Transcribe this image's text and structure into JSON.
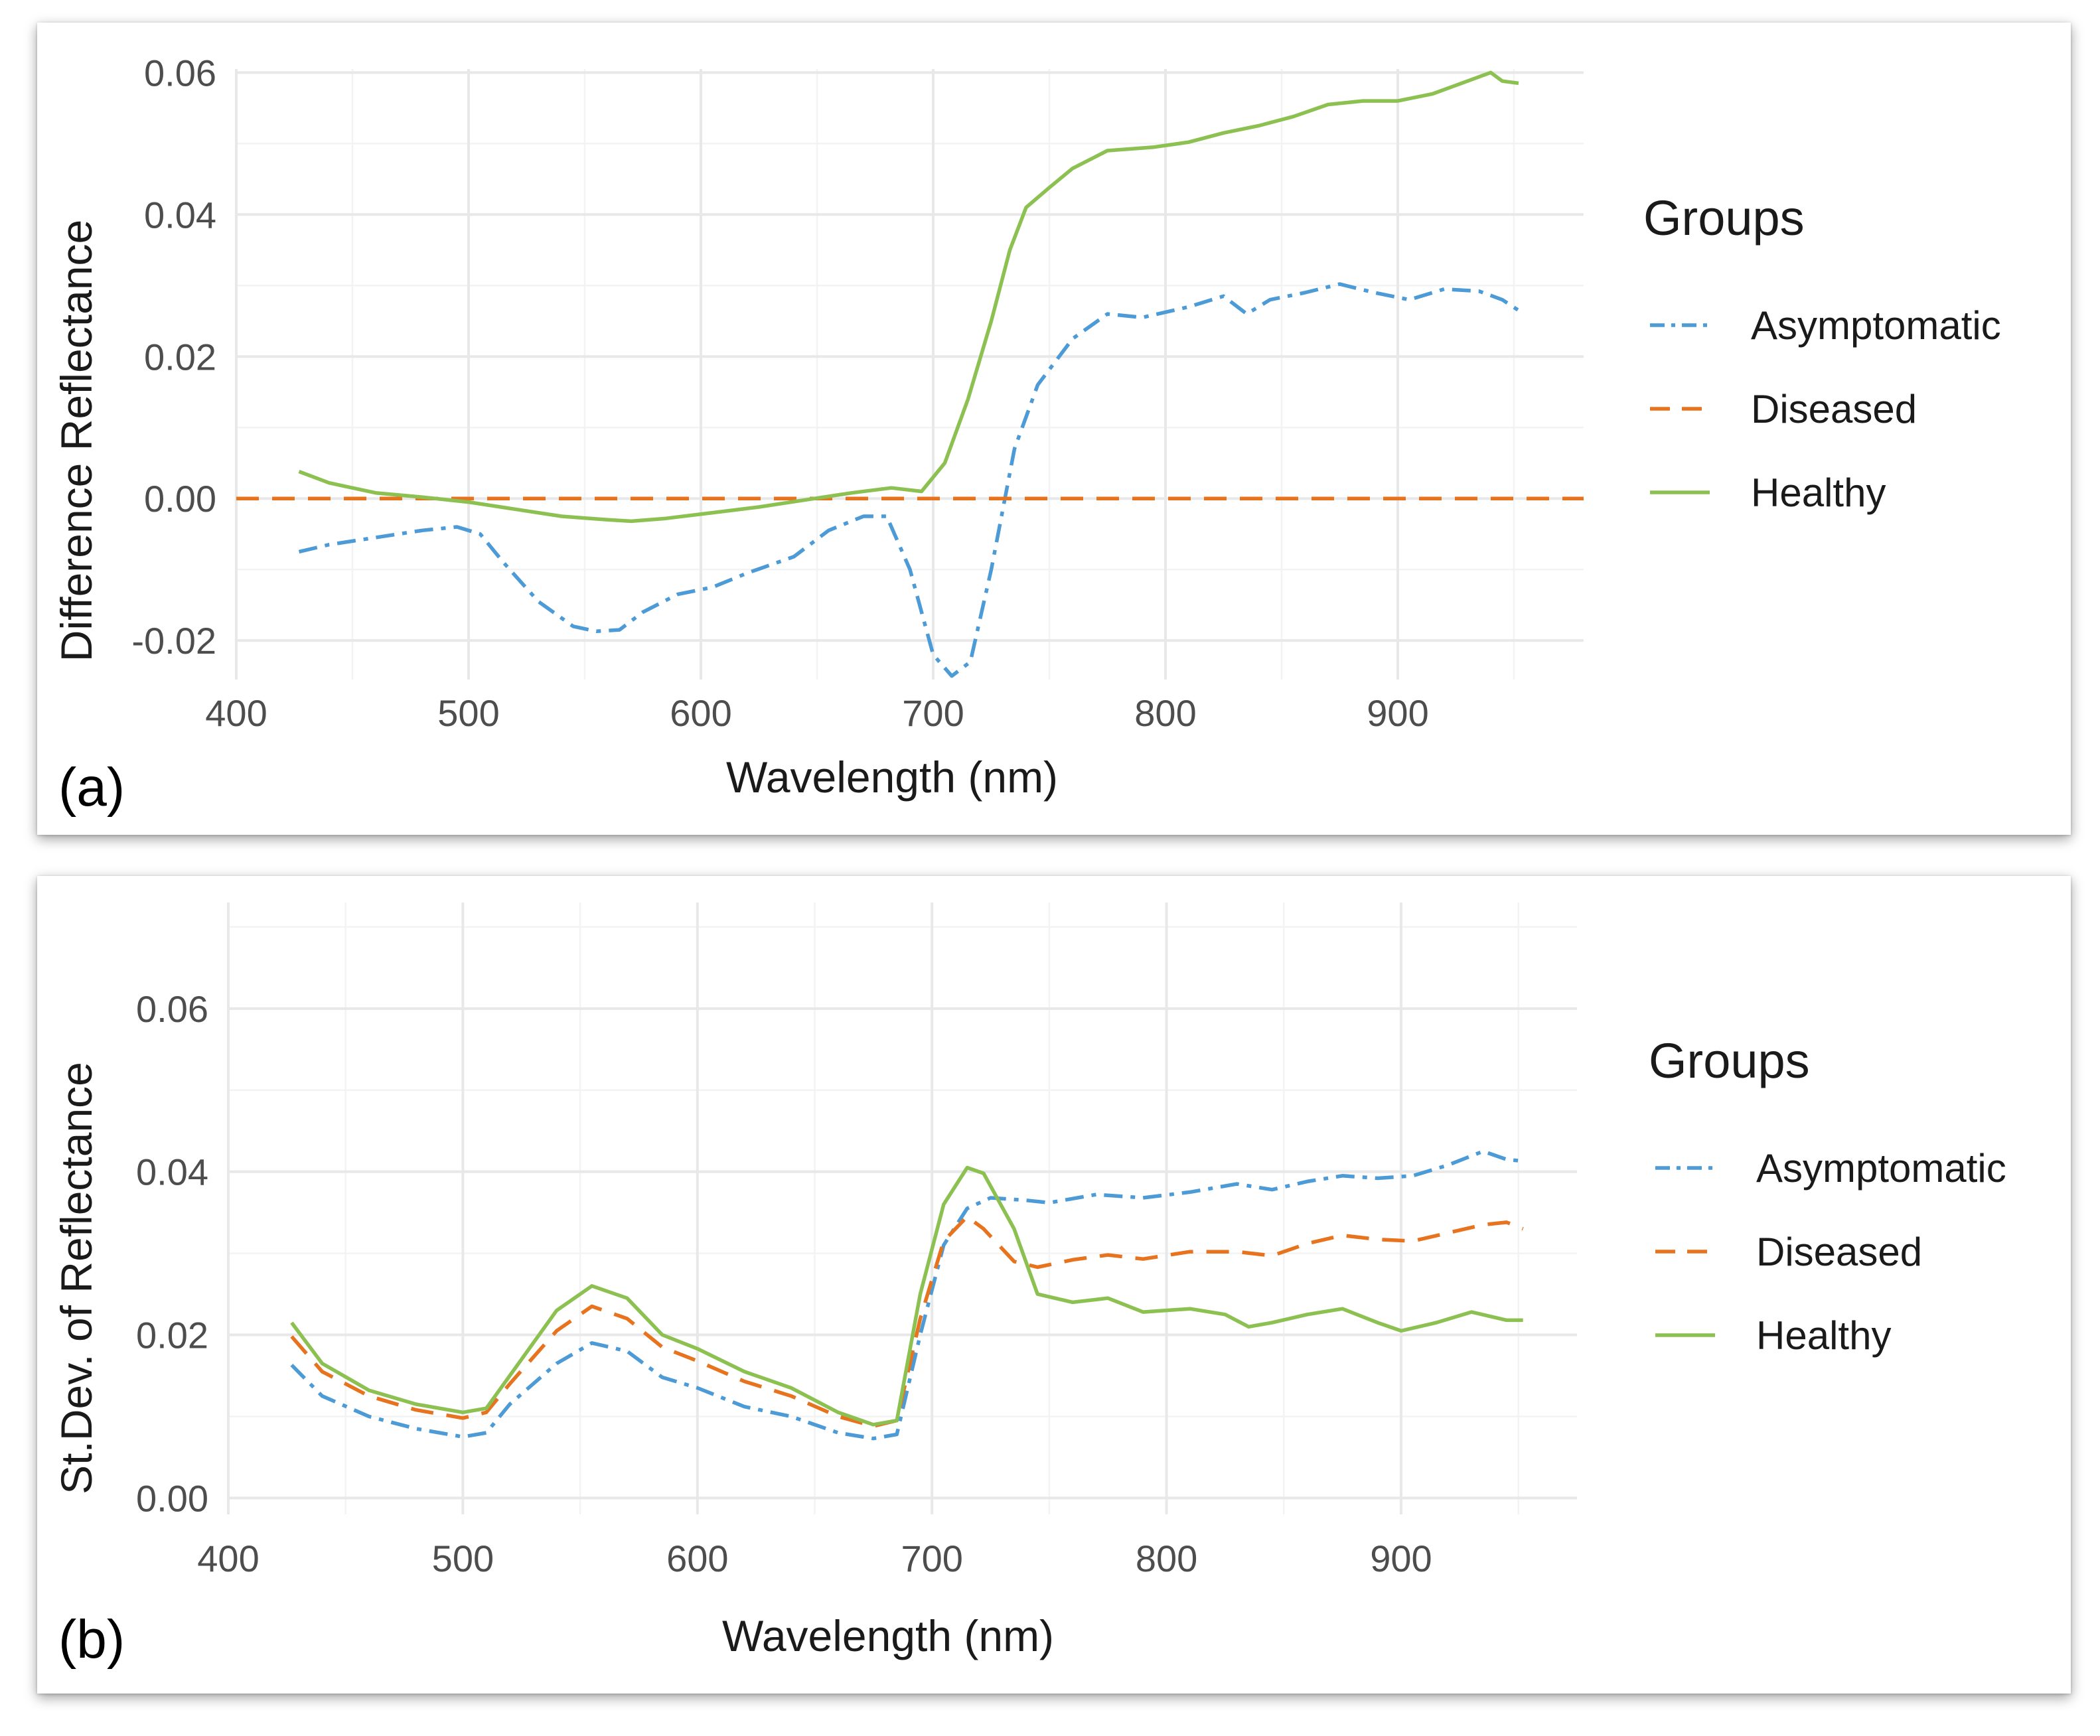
{
  "colors": {
    "Asymptomatic": "#4C9AD6",
    "Diseased": "#E8731F",
    "Healthy": "#8CC152"
  },
  "dash": {
    "Asymptomatic": "28 12 7 12",
    "Diseased": "34 20",
    "Healthy": ""
  },
  "chart_data": [
    {
      "type": "line",
      "panel_label": "(a)",
      "xlabel": "Wavelength (nm)",
      "ylabel": "Difference Reflectance",
      "xlim": [
        400,
        980
      ],
      "ylim": [
        -0.0255,
        0.0605
      ],
      "x_ticks": [
        400,
        500,
        600,
        700,
        800,
        900
      ],
      "x_tick_labels": [
        "400",
        "500",
        "600",
        "700",
        "800",
        "900"
      ],
      "y_ticks": [
        -0.02,
        0.0,
        0.02,
        0.04,
        0.06
      ],
      "y_tick_labels": [
        "-0.02",
        "0.00",
        "0.02",
        "0.04",
        "0.06"
      ],
      "legend_title": "Groups",
      "series": [
        {
          "name": "Asymptomatic",
          "points": [
            [
              427,
              -0.0075
            ],
            [
              440,
              -0.0065
            ],
            [
              460,
              -0.0055
            ],
            [
              480,
              -0.0045
            ],
            [
              495,
              -0.004
            ],
            [
              505,
              -0.005
            ],
            [
              515,
              -0.009
            ],
            [
              530,
              -0.0145
            ],
            [
              545,
              -0.018
            ],
            [
              555,
              -0.0187
            ],
            [
              565,
              -0.0185
            ],
            [
              575,
              -0.016
            ],
            [
              590,
              -0.0135
            ],
            [
              605,
              -0.0125
            ],
            [
              620,
              -0.0105
            ],
            [
              640,
              -0.0082
            ],
            [
              655,
              -0.0045
            ],
            [
              670,
              -0.0025
            ],
            [
              680,
              -0.0025
            ],
            [
              690,
              -0.01
            ],
            [
              700,
              -0.022
            ],
            [
              708,
              -0.025
            ],
            [
              716,
              -0.023
            ],
            [
              725,
              -0.01
            ],
            [
              735,
              0.007
            ],
            [
              745,
              0.016
            ],
            [
              760,
              0.0225
            ],
            [
              775,
              0.026
            ],
            [
              790,
              0.0255
            ],
            [
              810,
              0.027
            ],
            [
              825,
              0.0285
            ],
            [
              835,
              0.026
            ],
            [
              845,
              0.028
            ],
            [
              860,
              0.029
            ],
            [
              875,
              0.0302
            ],
            [
              890,
              0.029
            ],
            [
              905,
              0.028
            ],
            [
              920,
              0.0295
            ],
            [
              935,
              0.0292
            ],
            [
              945,
              0.028
            ],
            [
              952,
              0.0265
            ]
          ]
        },
        {
          "name": "Diseased",
          "points": [
            [
              400,
              0.0
            ],
            [
              980,
              0.0
            ]
          ]
        },
        {
          "name": "Healthy",
          "points": [
            [
              427,
              0.0038
            ],
            [
              440,
              0.0022
            ],
            [
              460,
              0.0008
            ],
            [
              480,
              0.0002
            ],
            [
              500,
              -0.0005
            ],
            [
              520,
              -0.0015
            ],
            [
              540,
              -0.0025
            ],
            [
              560,
              -0.003
            ],
            [
              570,
              -0.0032
            ],
            [
              585,
              -0.0028
            ],
            [
              605,
              -0.002
            ],
            [
              625,
              -0.0012
            ],
            [
              645,
              -0.0002
            ],
            [
              665,
              0.0008
            ],
            [
              682,
              0.0015
            ],
            [
              695,
              0.001
            ],
            [
              705,
              0.005
            ],
            [
              715,
              0.014
            ],
            [
              725,
              0.025
            ],
            [
              733,
              0.035
            ],
            [
              740,
              0.041
            ],
            [
              750,
              0.0438
            ],
            [
              760,
              0.0465
            ],
            [
              775,
              0.049
            ],
            [
              795,
              0.0495
            ],
            [
              810,
              0.0502
            ],
            [
              825,
              0.0515
            ],
            [
              840,
              0.0525
            ],
            [
              855,
              0.0538
            ],
            [
              870,
              0.0555
            ],
            [
              885,
              0.056
            ],
            [
              900,
              0.056
            ],
            [
              915,
              0.057
            ],
            [
              930,
              0.0588
            ],
            [
              940,
              0.06
            ],
            [
              945,
              0.0588
            ],
            [
              952,
              0.0585
            ]
          ]
        }
      ]
    },
    {
      "type": "line",
      "panel_label": "(b)",
      "xlabel": "Wavelength (nm)",
      "ylabel": "St.Dev. of Reflectance",
      "xlim": [
        400,
        975
      ],
      "ylim": [
        -0.002,
        0.073
      ],
      "x_ticks": [
        400,
        500,
        600,
        700,
        800,
        900
      ],
      "x_tick_labels": [
        "400",
        "500",
        "600",
        "700",
        "800",
        "900"
      ],
      "y_ticks": [
        0.0,
        0.02,
        0.04,
        0.06
      ],
      "y_tick_labels": [
        "0.00",
        "0.02",
        "0.04",
        "0.06"
      ],
      "legend_title": "Groups",
      "series": [
        {
          "name": "Asymptomatic",
          "points": [
            [
              427,
              0.0163
            ],
            [
              440,
              0.0125
            ],
            [
              460,
              0.01
            ],
            [
              480,
              0.0085
            ],
            [
              500,
              0.0075
            ],
            [
              510,
              0.008
            ],
            [
              520,
              0.0115
            ],
            [
              540,
              0.0165
            ],
            [
              555,
              0.019
            ],
            [
              570,
              0.018
            ],
            [
              585,
              0.0148
            ],
            [
              600,
              0.0135
            ],
            [
              620,
              0.0112
            ],
            [
              640,
              0.01
            ],
            [
              660,
              0.008
            ],
            [
              675,
              0.0073
            ],
            [
              685,
              0.0078
            ],
            [
              695,
              0.02
            ],
            [
              705,
              0.031
            ],
            [
              715,
              0.0355
            ],
            [
              725,
              0.0368
            ],
            [
              740,
              0.0365
            ],
            [
              750,
              0.0362
            ],
            [
              770,
              0.0372
            ],
            [
              790,
              0.0368
            ],
            [
              810,
              0.0375
            ],
            [
              830,
              0.0385
            ],
            [
              845,
              0.0378
            ],
            [
              860,
              0.0388
            ],
            [
              875,
              0.0395
            ],
            [
              890,
              0.0392
            ],
            [
              905,
              0.0395
            ],
            [
              920,
              0.0408
            ],
            [
              935,
              0.0425
            ],
            [
              945,
              0.0415
            ],
            [
              952,
              0.0413
            ]
          ]
        },
        {
          "name": "Diseased",
          "points": [
            [
              427,
              0.0198
            ],
            [
              440,
              0.0155
            ],
            [
              460,
              0.0125
            ],
            [
              480,
              0.0108
            ],
            [
              500,
              0.0098
            ],
            [
              510,
              0.0105
            ],
            [
              520,
              0.014
            ],
            [
              540,
              0.0205
            ],
            [
              555,
              0.0235
            ],
            [
              570,
              0.022
            ],
            [
              585,
              0.0185
            ],
            [
              600,
              0.0168
            ],
            [
              620,
              0.0143
            ],
            [
              640,
              0.0125
            ],
            [
              660,
              0.01
            ],
            [
              675,
              0.0088
            ],
            [
              685,
              0.0095
            ],
            [
              695,
              0.022
            ],
            [
              705,
              0.0315
            ],
            [
              715,
              0.0345
            ],
            [
              722,
              0.033
            ],
            [
              735,
              0.029
            ],
            [
              745,
              0.0283
            ],
            [
              760,
              0.0292
            ],
            [
              775,
              0.0298
            ],
            [
              790,
              0.0293
            ],
            [
              810,
              0.0302
            ],
            [
              830,
              0.0302
            ],
            [
              845,
              0.0297
            ],
            [
              860,
              0.0312
            ],
            [
              875,
              0.0322
            ],
            [
              890,
              0.0317
            ],
            [
              905,
              0.0315
            ],
            [
              920,
              0.0325
            ],
            [
              935,
              0.0335
            ],
            [
              945,
              0.0338
            ],
            [
              952,
              0.033
            ]
          ]
        },
        {
          "name": "Healthy",
          "points": [
            [
              427,
              0.0215
            ],
            [
              440,
              0.0165
            ],
            [
              460,
              0.0132
            ],
            [
              480,
              0.0115
            ],
            [
              500,
              0.0105
            ],
            [
              510,
              0.011
            ],
            [
              520,
              0.015
            ],
            [
              540,
              0.023
            ],
            [
              555,
              0.026
            ],
            [
              570,
              0.0245
            ],
            [
              585,
              0.02
            ],
            [
              600,
              0.0183
            ],
            [
              620,
              0.0155
            ],
            [
              640,
              0.0135
            ],
            [
              660,
              0.0105
            ],
            [
              675,
              0.009
            ],
            [
              685,
              0.0095
            ],
            [
              695,
              0.025
            ],
            [
              705,
              0.036
            ],
            [
              715,
              0.0405
            ],
            [
              722,
              0.0398
            ],
            [
              735,
              0.033
            ],
            [
              745,
              0.025
            ],
            [
              760,
              0.024
            ],
            [
              775,
              0.0245
            ],
            [
              790,
              0.0228
            ],
            [
              810,
              0.0232
            ],
            [
              825,
              0.0225
            ],
            [
              835,
              0.021
            ],
            [
              845,
              0.0215
            ],
            [
              860,
              0.0225
            ],
            [
              875,
              0.0232
            ],
            [
              890,
              0.0215
            ],
            [
              900,
              0.0205
            ],
            [
              915,
              0.0215
            ],
            [
              930,
              0.0228
            ],
            [
              945,
              0.0218
            ],
            [
              952,
              0.0218
            ]
          ]
        }
      ]
    }
  ]
}
